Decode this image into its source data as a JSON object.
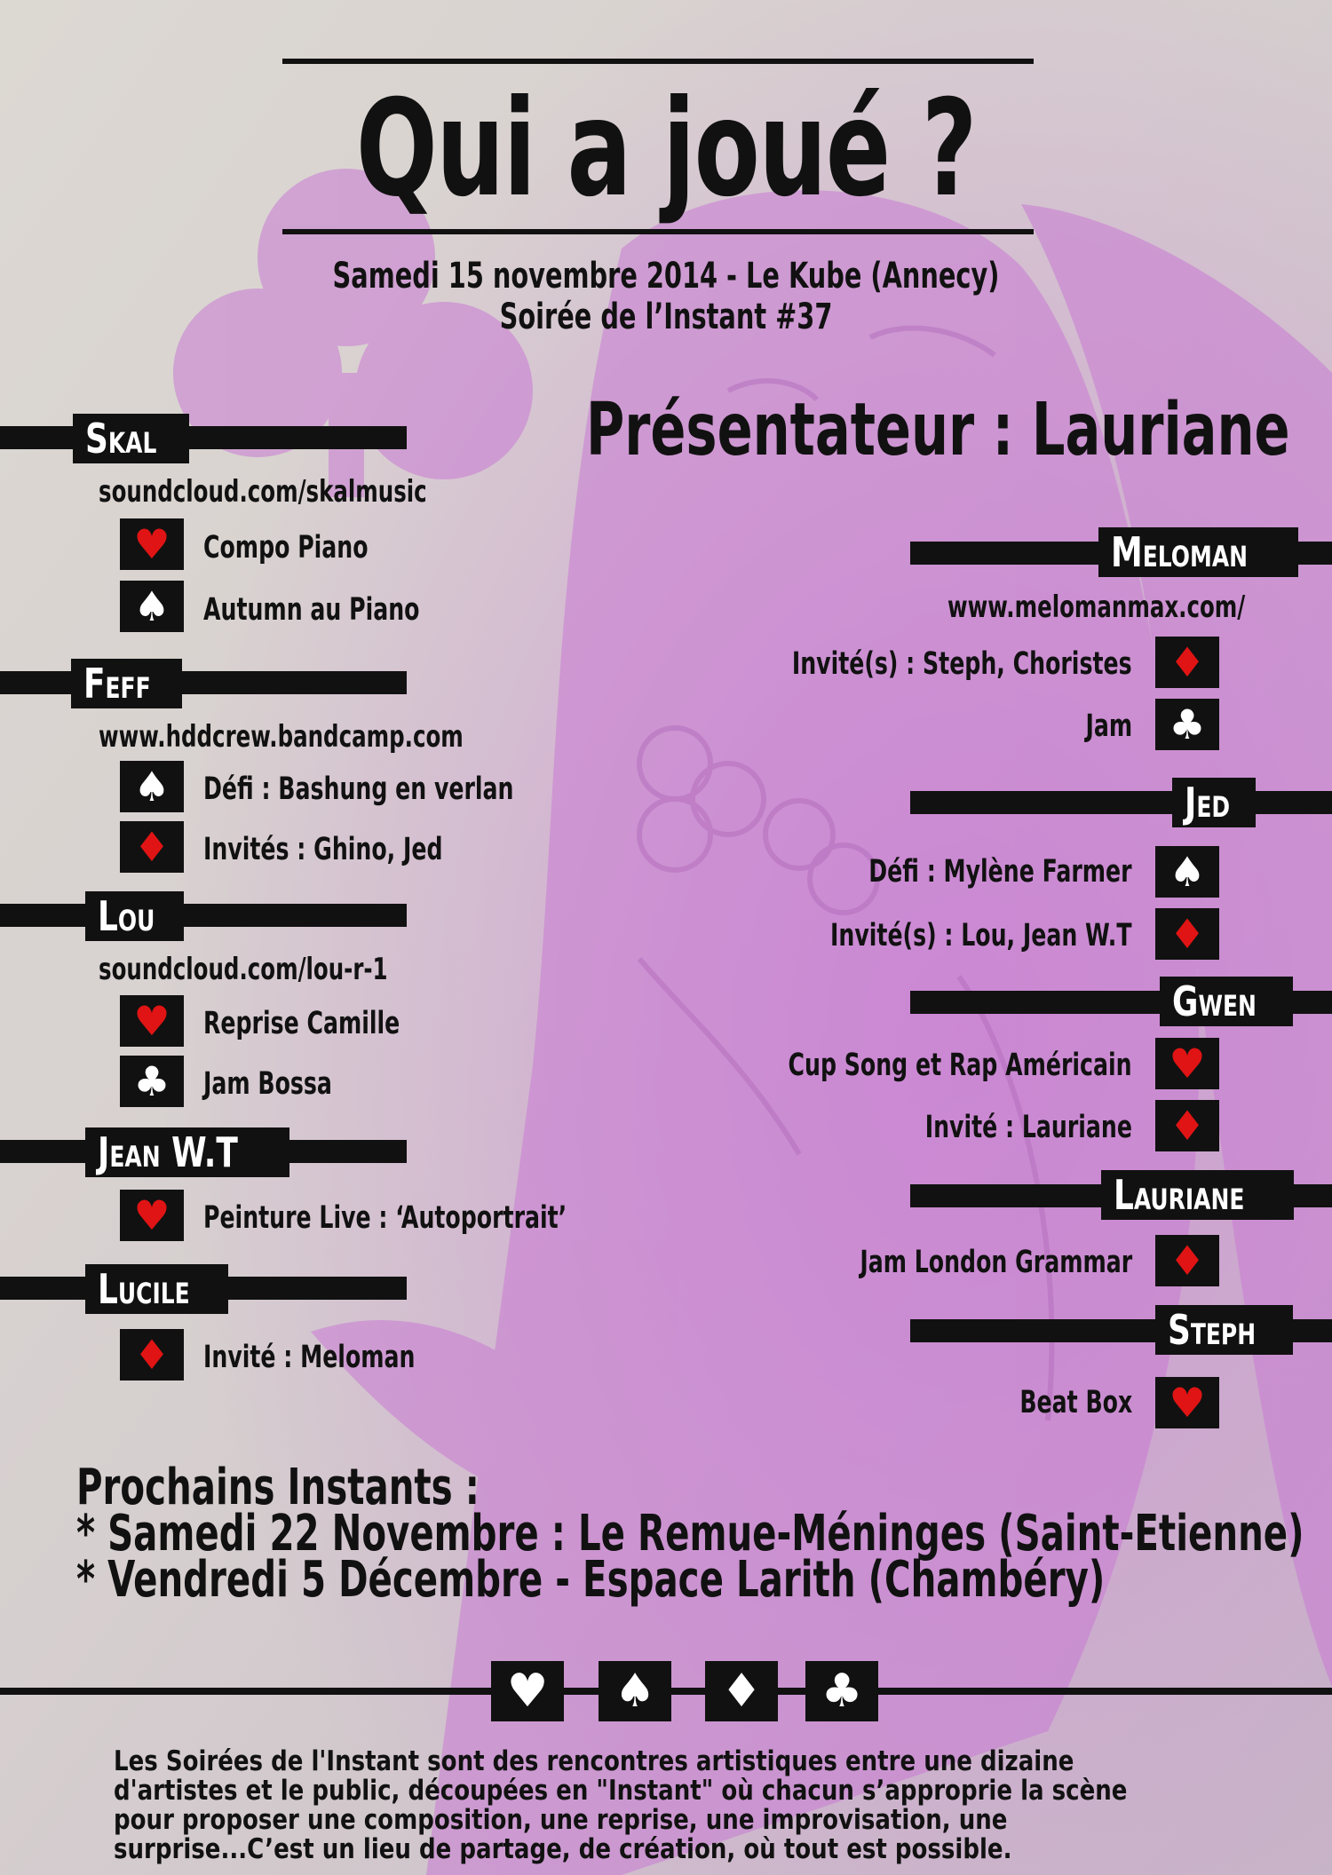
{
  "header": {
    "title": "Qui a joué ?",
    "date_line": "Samedi 15 novembre 2014 - Le Kube (Annecy)",
    "event_line": "Soirée de l’Instant #37",
    "presenter": "Présentateur : Lauriane"
  },
  "artists_left": [
    {
      "name": "Skal",
      "link": "soundcloud.com/skalmusic",
      "items": [
        {
          "suit": "heart",
          "glyph": "♥",
          "label": "Compo Piano"
        },
        {
          "suit": "spade",
          "glyph": "♠",
          "label": "Autumn au Piano"
        }
      ]
    },
    {
      "name": "Feff",
      "link": "www.hddcrew.bandcamp.com",
      "items": [
        {
          "suit": "spade",
          "glyph": "♠",
          "label": "Défi : Bashung en verlan"
        },
        {
          "suit": "diamond",
          "glyph": "♦",
          "label": "Invités : Ghino, Jed"
        }
      ]
    },
    {
      "name": "Lou",
      "link": "soundcloud.com/lou-r-1",
      "items": [
        {
          "suit": "heart",
          "glyph": "♥",
          "label": "Reprise Camille"
        },
        {
          "suit": "club",
          "glyph": "♣",
          "label": "Jam Bossa"
        }
      ]
    },
    {
      "name": "Jean W.T",
      "link": "",
      "items": [
        {
          "suit": "heart",
          "glyph": "♥",
          "label": "Peinture Live : ‘Autoportrait’"
        }
      ]
    },
    {
      "name": "Lucile",
      "link": "",
      "items": [
        {
          "suit": "diamond",
          "glyph": "♦",
          "label": "Invité : Meloman"
        }
      ]
    }
  ],
  "artists_right": [
    {
      "name": "Meloman",
      "link": "www.melomanmax.com/",
      "items": [
        {
          "suit": "diamond",
          "glyph": "♦",
          "label": "Invité(s) : Steph, Choristes"
        },
        {
          "suit": "club",
          "glyph": "♣",
          "label": "Jam"
        }
      ]
    },
    {
      "name": "Jed",
      "link": "",
      "items": [
        {
          "suit": "spade",
          "glyph": "♠",
          "label": "Défi : Mylène Farmer"
        },
        {
          "suit": "diamond",
          "glyph": "♦",
          "label": "Invité(s) : Lou, Jean W.T"
        }
      ]
    },
    {
      "name": "Gwen",
      "link": "",
      "items": [
        {
          "suit": "heart",
          "glyph": "♥",
          "label": "Cup Song et Rap Américain"
        },
        {
          "suit": "diamond",
          "glyph": "♦",
          "label": "Invité : Lauriane"
        }
      ]
    },
    {
      "name": "Lauriane",
      "link": "",
      "items": [
        {
          "suit": "diamond",
          "glyph": "♦",
          "label": "Jam London Grammar"
        }
      ]
    },
    {
      "name": "Steph",
      "link": "",
      "items": [
        {
          "suit": "heart",
          "glyph": "♥",
          "label": "Beat Box"
        }
      ]
    }
  ],
  "upcoming": {
    "heading": "Prochains Instants :",
    "lines": [
      "* Samedi 22 Novembre : Le Remue-Méninges (Saint-Etienne)",
      "* Vendredi 5 Décembre - Espace Larith (Chambéry)"
    ]
  },
  "footer": {
    "suits": [
      "♥",
      "♠",
      "♦",
      "♣"
    ],
    "text": "Les Soirées de l'Instant sont des rencontres artistiques entre une dizaine d'artistes et le public, découpées en \"Instant\" où chacun s’approprie la scène pour proposer une composition, une reprise, une improvisation, une surprise...C’est un lieu de partage, de création, où tout est possible."
  },
  "colors": {
    "accent": "#e01414",
    "ink": "#111111",
    "tint": "#c77ad2"
  }
}
